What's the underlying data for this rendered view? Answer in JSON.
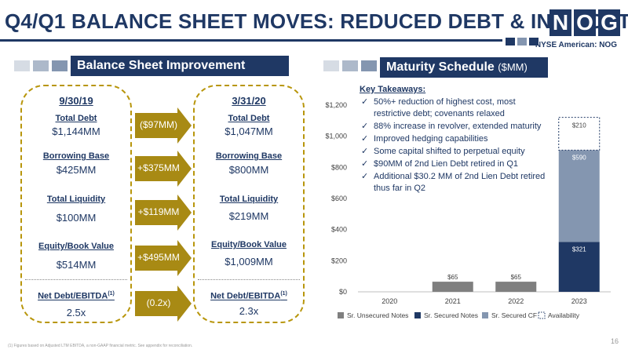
{
  "title": "Q4/Q1 BALANCE SHEET MOVES: REDUCED DEBT & INT. COST",
  "logo": [
    "N",
    "O",
    "G"
  ],
  "exchange": "NYSE American: NOG",
  "left_header": "Balance Sheet Improvement",
  "right_header": {
    "main": "Maturity Schedule",
    "unit": "($MM)"
  },
  "col_left": {
    "date": "9/30/19",
    "rows": [
      {
        "label": "Total Debt",
        "value": "$1,144MM"
      },
      {
        "label": "Borrowing Base",
        "value": "$425MM"
      },
      {
        "label": "Total Liquidity",
        "value": "$100MM"
      },
      {
        "label": "Equity/Book Value",
        "value": "$514MM"
      },
      {
        "label": "Net Debt/EBITDA(1)",
        "value": "2.5x"
      }
    ]
  },
  "col_right": {
    "date": "3/31/20",
    "rows": [
      {
        "label": "Total Debt",
        "value": "$1,047MM"
      },
      {
        "label": "Borrowing Base",
        "value": "$800MM"
      },
      {
        "label": "Total Liquidity",
        "value": "$219MM"
      },
      {
        "label": "Equity/Book Value",
        "value": "$1,009MM"
      },
      {
        "label": "Net Debt/EBITDA(1)",
        "value": "2.3x"
      }
    ]
  },
  "changes": [
    "($97MM)",
    "+$375MM",
    "+$119MM",
    "+$495MM",
    "(0.2x)"
  ],
  "takeaways": {
    "title": "Key Takeaways:",
    "items": [
      "50%+ reduction of highest cost, most restrictive debt; covenants relaxed",
      "88% increase in revolver, extended maturity",
      "Improved hedging capabilities",
      "Some capital shifted to perpetual equity",
      "$90MM of 2nd Lien Debt retired in Q1",
      "Additional $30.2 MM of 2nd Lien Debt retired thus far in Q2"
    ]
  },
  "chart_data": {
    "type": "bar",
    "stacked": true,
    "categories": [
      "2020",
      "2021",
      "2022",
      "2023"
    ],
    "series": [
      {
        "name": "Sr. Unsecured Notes",
        "values": [
          0,
          65,
          65,
          0
        ],
        "color": "#7f7f7f",
        "labels": [
          "",
          "$65",
          "$65",
          ""
        ]
      },
      {
        "name": "Sr. Secured Notes",
        "values": [
          0,
          0,
          0,
          321
        ],
        "color": "#1f3864",
        "labels": [
          "",
          "",
          "",
          "$321"
        ]
      },
      {
        "name": "Sr. Secured CF",
        "values": [
          0,
          0,
          0,
          590
        ],
        "color": "#8496b0",
        "labels": [
          "",
          "",
          "",
          "$590"
        ]
      },
      {
        "name": "Availability",
        "values": [
          0,
          0,
          0,
          210
        ],
        "color": "#ffffff",
        "labels": [
          "",
          "",
          "",
          "$210"
        ]
      }
    ],
    "ylim": [
      0,
      1200
    ],
    "yticks": [
      "$0",
      "$200",
      "$400",
      "$600",
      "$800",
      "$1,000",
      "$1,200"
    ],
    "legend_position": "bottom"
  },
  "footnote": "(1) Figures based on Adjusted LTM EBITDA, a non-GAAP financial metric.  See appendix for reconciliation.",
  "page_number": "16",
  "colors": {
    "navy": "#1f3864",
    "gold": "#b8960c",
    "slate": "#8496b0",
    "gray": "#7f7f7f"
  }
}
